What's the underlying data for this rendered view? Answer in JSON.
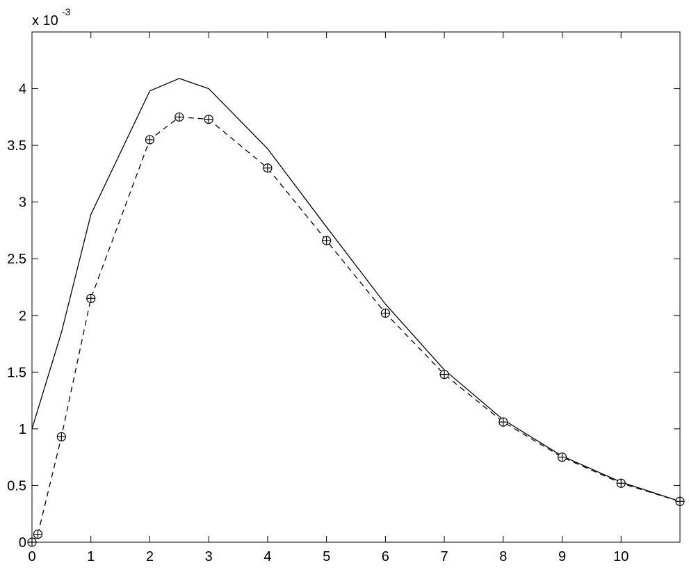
{
  "chart_data": {
    "type": "line",
    "y_multiplier": {
      "base": "x 10",
      "exponent": "-3"
    },
    "xlim": [
      0,
      11
    ],
    "ylim": [
      0,
      4.5
    ],
    "xticks": [
      0,
      1,
      2,
      3,
      4,
      5,
      6,
      7,
      8,
      9,
      10
    ],
    "yticks": [
      0,
      0.5,
      1,
      1.5,
      2,
      2.5,
      3,
      3.5,
      4
    ],
    "series": [
      {
        "color": "#000000",
        "style": "solid",
        "marker": "none",
        "x": [
          0,
          0.5,
          1,
          2,
          2.5,
          3,
          4,
          5,
          6,
          7,
          8,
          9,
          10,
          11
        ],
        "values": [
          1.0,
          1.85,
          2.89,
          3.98,
          4.09,
          4.0,
          3.47,
          2.78,
          2.1,
          1.52,
          1.08,
          0.76,
          0.53,
          0.36
        ]
      },
      {
        "color": "#000000",
        "style": "dashed",
        "marker": "circle-plus",
        "x": [
          0,
          0.1,
          0.5,
          1,
          2,
          2.5,
          3,
          4,
          5,
          6,
          7,
          8,
          9,
          10,
          11
        ],
        "values": [
          0,
          0.07,
          0.93,
          2.15,
          3.55,
          3.75,
          3.73,
          3.3,
          2.66,
          2.02,
          1.48,
          1.06,
          0.75,
          0.52,
          0.36
        ]
      }
    ]
  }
}
